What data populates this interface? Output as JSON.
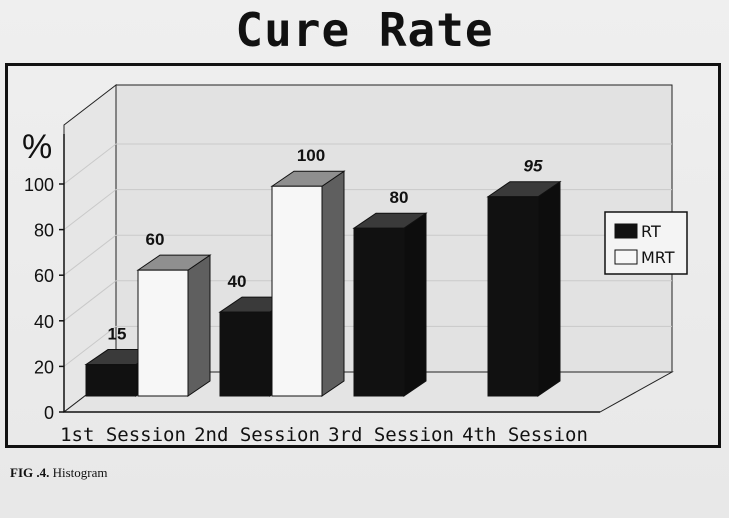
{
  "chart_data": {
    "type": "bar",
    "title": "Cure Rate",
    "ylabel": "%",
    "xlabel": "",
    "ylim": [
      0,
      100
    ],
    "y_ticks": [
      "0",
      "20",
      "40",
      "60",
      "80",
      "100"
    ],
    "categories": [
      "1st Session",
      "2nd Session",
      "3rd Session",
      "4th Session"
    ],
    "series": [
      {
        "name": "RT",
        "values": [
          15,
          40,
          80,
          95
        ],
        "labels": [
          "15",
          "40",
          "80",
          "95"
        ],
        "color": "#111111"
      },
      {
        "name": "MRT",
        "values": [
          60,
          100,
          null,
          null
        ],
        "labels": [
          "60",
          "100",
          "",
          ""
        ],
        "color": "#f7f7f7"
      }
    ],
    "legend": "right",
    "grid": false,
    "style": "3d"
  },
  "caption": {
    "label": "FIG .4.",
    "text": "Histogram"
  }
}
